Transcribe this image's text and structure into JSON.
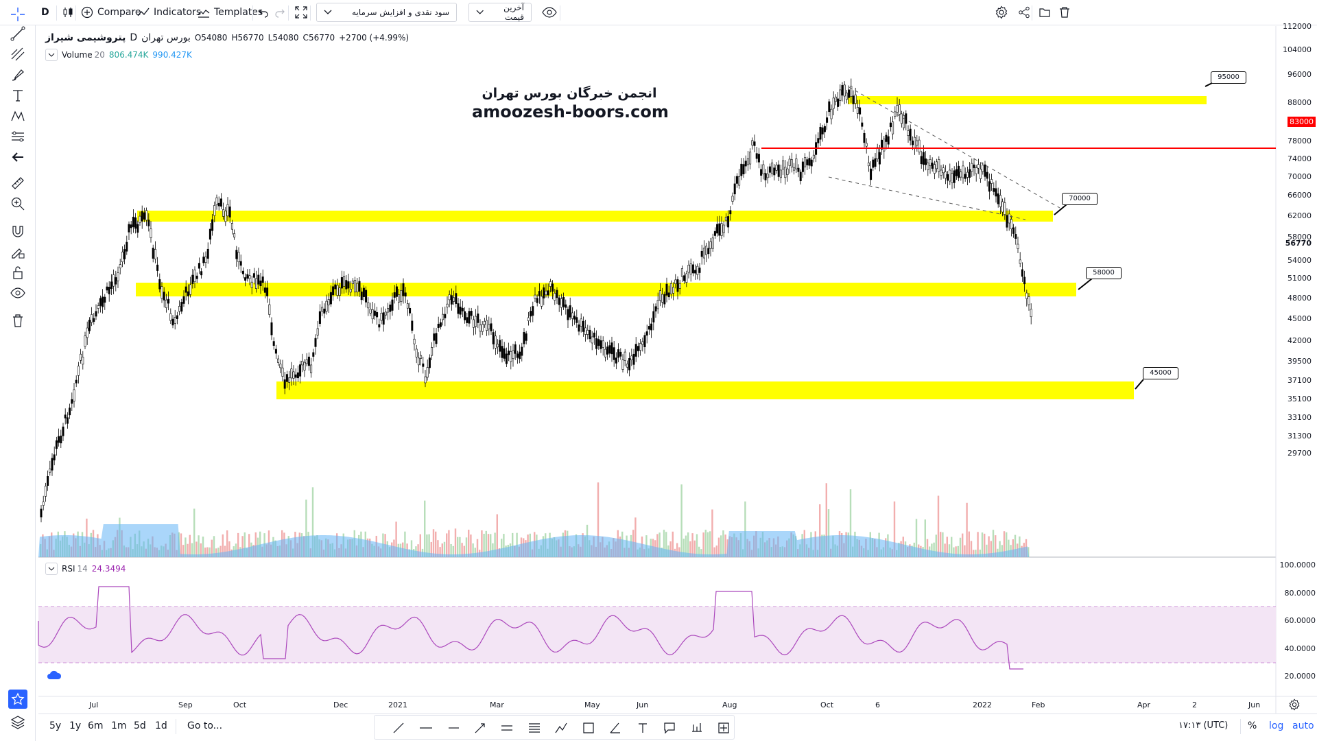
{
  "topbar": {
    "interval": "D",
    "compare": "Compare",
    "indicators": "Indicators",
    "templates": "Templates",
    "strategy_select": "سود نقدی و افزایش سرمایه",
    "price_select": "آخرین قیمت"
  },
  "legend": {
    "symbol": "پتروشیمی شیراز",
    "interval": "D",
    "exchange": "بورس تهران",
    "open_label": "O",
    "open": "54080",
    "high_label": "H",
    "high": "56770",
    "low_label": "L",
    "low": "54080",
    "close_label": "C",
    "close": "56770",
    "change": "+2700 (+4.99%)",
    "volume_label": "Volume",
    "volume_len": "20",
    "volume_v1": "806.474K",
    "volume_v2": "990.427K",
    "rsi_label": "RSI",
    "rsi_len": "14",
    "rsi_value": "24.3494"
  },
  "watermark": {
    "line1": "انجمن خبرگان بورس تهران",
    "line2": "amoozesh-boors.com"
  },
  "callouts": [
    "95000",
    "83000",
    "70000",
    "58000",
    "45000"
  ],
  "price_axis": [
    "112000",
    "104000",
    "96000",
    "88000",
    "83000",
    "78000",
    "74000",
    "70000",
    "66000",
    "62000",
    "58000",
    "56770",
    "54000",
    "51000",
    "48000",
    "45000",
    "42000",
    "39500",
    "37100",
    "35100",
    "33100",
    "31300",
    "29700"
  ],
  "rsi_axis": [
    "100.0000",
    "80.0000",
    "60.0000",
    "40.0000",
    "20.0000"
  ],
  "time_axis": [
    "Jul",
    "Sep",
    "Oct",
    "Dec",
    "2021",
    "Mar",
    "May",
    "Jun",
    "Aug",
    "Oct",
    "6",
    "2022",
    "Feb",
    "Apr",
    "2",
    "Jun"
  ],
  "bottombar": {
    "ranges": [
      "5y",
      "1y",
      "6m",
      "1m",
      "5d",
      "1d"
    ],
    "goto": "Go to...",
    "clock": "۱۷:۱۳ (UTC)",
    "percent": "%",
    "log": "log",
    "auto": "auto"
  },
  "colors": {
    "zone": "#ffff00",
    "resistance": "#ff0000",
    "rsi_line": "#9c27b0",
    "rsi_band": "#f3e5f5",
    "volume_area": "#64b5f6",
    "accent": "#2962ff"
  },
  "icons": {
    "left": [
      "crosshair-icon",
      "trendline-icon",
      "pitchfork-icon",
      "brush-icon",
      "text-icon",
      "pattern-icon",
      "prediction-icon",
      "back-arrow-icon",
      "ruler-icon",
      "zoom-icon",
      "magnet-icon",
      "lock-drawing-icon",
      "unlock-icon",
      "eye-icon",
      "trash-icon",
      "star-icon",
      "layers-icon"
    ]
  }
}
